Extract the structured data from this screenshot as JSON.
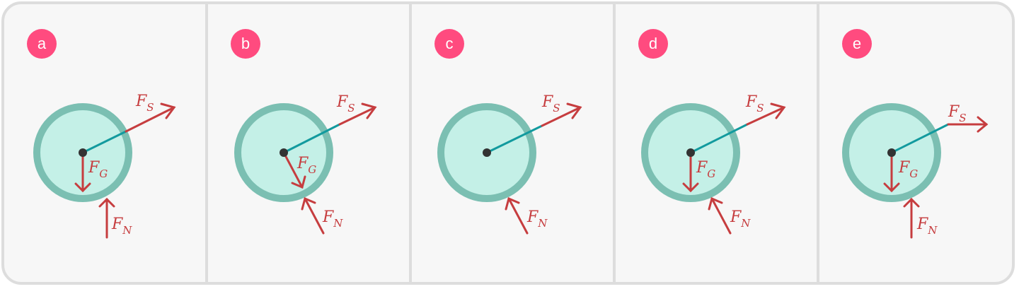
{
  "colors": {
    "frame_bg": "#f7f7f7",
    "border": "#dddddd",
    "badge": "#ff4b7f",
    "ball_fill": "#c4f0e7",
    "ball_stroke": "#7bbfb2",
    "string": "#129a9e",
    "force_arrow": "#c63d3f",
    "pivot": "#333333"
  },
  "force_labels": {
    "spring": {
      "main": "F",
      "sub": "S"
    },
    "gravity": {
      "main": "F",
      "sub": "G"
    },
    "normal": {
      "main": "F",
      "sub": "N"
    }
  },
  "panels": [
    {
      "label": "a",
      "forces": [
        "spring",
        "gravity",
        "normal"
      ]
    },
    {
      "label": "b",
      "forces": [
        "spring",
        "gravity",
        "normal"
      ]
    },
    {
      "label": "c",
      "forces": [
        "spring",
        "normal"
      ]
    },
    {
      "label": "d",
      "forces": [
        "spring",
        "gravity",
        "normal"
      ]
    },
    {
      "label": "e",
      "forces": [
        "spring",
        "gravity",
        "normal"
      ]
    }
  ]
}
